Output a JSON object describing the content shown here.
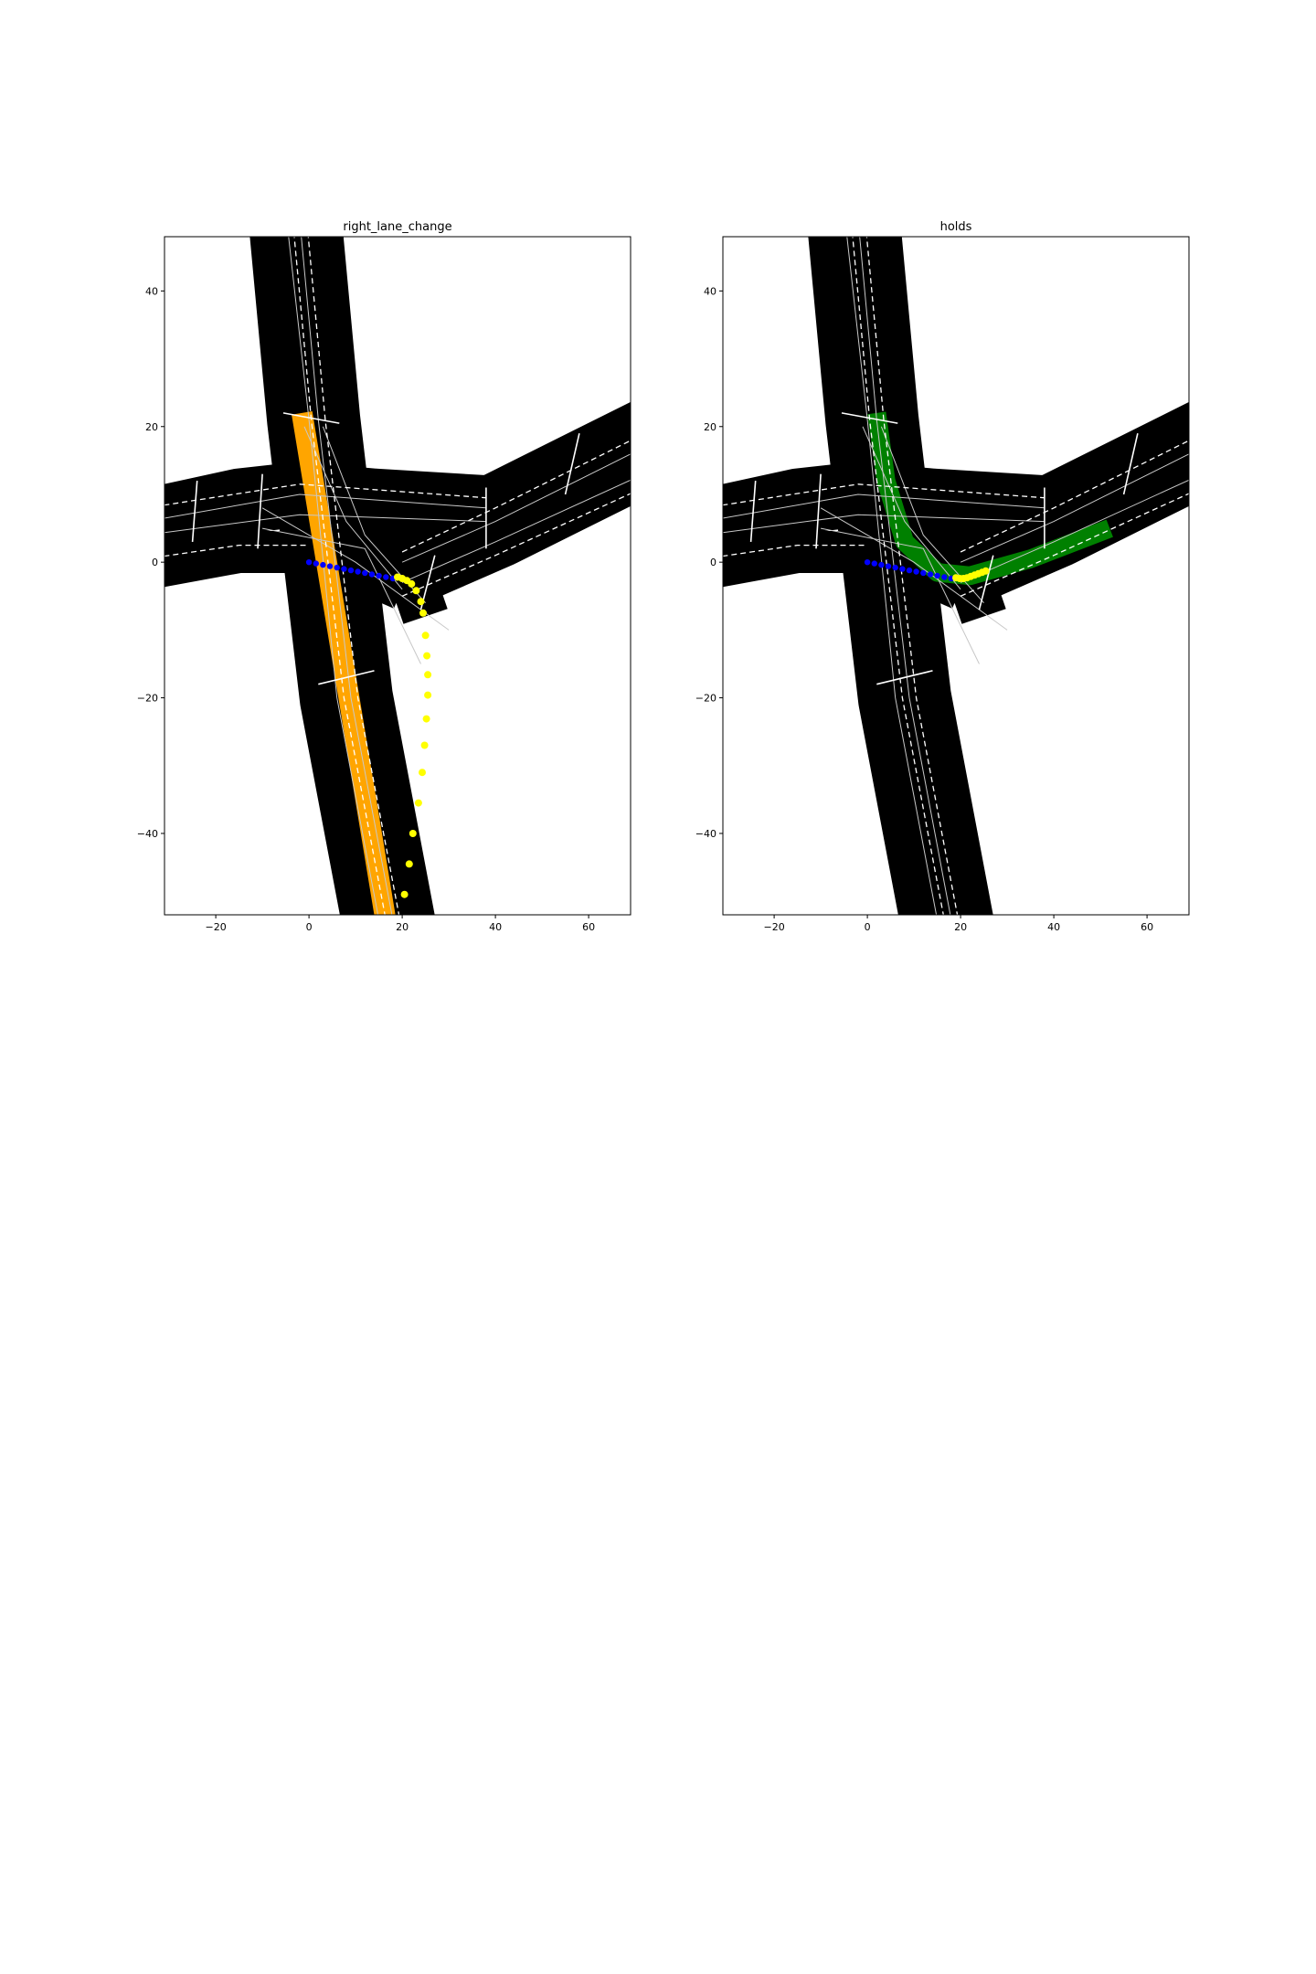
{
  "figure": {
    "background": "#ffffff"
  },
  "map_style": {
    "road_color": "#000000",
    "lane_line_color": "#ffffff",
    "centerline_color": "#c8c8c8",
    "history_color": "#0000ff",
    "prediction_color": "#ffff00"
  },
  "chart_data": [
    {
      "type": "scatter",
      "title": "right_lane_change",
      "xlim": [
        -31,
        69
      ],
      "ylim": [
        -52,
        48
      ],
      "xticks": [
        -20,
        0,
        20,
        40,
        60
      ],
      "yticks": [
        40,
        20,
        0,
        -20,
        -40
      ],
      "grid": false,
      "highlight_color": "#ffa500",
      "highlight_lane": [
        [
          -1.5,
          22
        ],
        [
          16.5,
          -53
        ]
      ],
      "highlight_width": 4.5,
      "series": [
        {
          "role": "history",
          "color": "#0000ff",
          "points": [
            [
              0,
              0
            ],
            [
              1.5,
              -0.2
            ],
            [
              3,
              -0.4
            ],
            [
              4.5,
              -0.6
            ],
            [
              6,
              -0.8
            ],
            [
              7.5,
              -1.0
            ],
            [
              9,
              -1.2
            ],
            [
              10.5,
              -1.4
            ],
            [
              12,
              -1.6
            ],
            [
              13.5,
              -1.8
            ],
            [
              15,
              -2.0
            ],
            [
              16.5,
              -2.2
            ],
            [
              18,
              -2.4
            ]
          ]
        },
        {
          "role": "prediction",
          "color": "#ffff00",
          "points": [
            [
              19,
              -2.2
            ],
            [
              20,
              -2.4
            ],
            [
              21,
              -2.7
            ],
            [
              22,
              -3.2
            ],
            [
              23,
              -4.2
            ],
            [
              24,
              -5.8
            ],
            [
              24.5,
              -7.5
            ],
            [
              25,
              -10.8
            ],
            [
              25.3,
              -13.8
            ],
            [
              25.5,
              -16.6
            ],
            [
              25.5,
              -19.6
            ],
            [
              25.2,
              -23.1
            ],
            [
              24.8,
              -27
            ],
            [
              24.3,
              -31
            ],
            [
              23.5,
              -35.5
            ],
            [
              22.3,
              -40
            ],
            [
              21.5,
              -44.5
            ],
            [
              20.5,
              -49
            ]
          ]
        }
      ]
    },
    {
      "type": "scatter",
      "title": "holds",
      "xlim": [
        -31,
        69
      ],
      "ylim": [
        -52,
        48
      ],
      "xticks": [
        -20,
        0,
        20,
        40,
        60
      ],
      "yticks": [
        40,
        20,
        0,
        -20,
        -40
      ],
      "grid": false,
      "highlight_color": "#008000",
      "highlight_lane": [
        [
          2,
          22
        ],
        [
          4,
          12
        ],
        [
          8,
          3
        ],
        [
          15,
          -1.5
        ],
        [
          22,
          -2
        ],
        [
          35,
          0.5
        ],
        [
          52,
          5
        ]
      ],
      "highlight_width": 4,
      "series": [
        {
          "role": "history",
          "color": "#0000ff",
          "points": [
            [
              0,
              0
            ],
            [
              1.5,
              -0.2
            ],
            [
              3,
              -0.4
            ],
            [
              4.5,
              -0.6
            ],
            [
              6,
              -0.8
            ],
            [
              7.5,
              -1.0
            ],
            [
              9,
              -1.2
            ],
            [
              10.5,
              -1.4
            ],
            [
              12,
              -1.6
            ],
            [
              13.5,
              -1.8
            ],
            [
              15,
              -2.0
            ],
            [
              16.5,
              -2.2
            ],
            [
              18,
              -2.4
            ]
          ]
        },
        {
          "role": "prediction",
          "color": "#ffff00",
          "points": [
            [
              19,
              -2.3
            ],
            [
              19.8,
              -2.4
            ],
            [
              20.6,
              -2.4
            ],
            [
              21.4,
              -2.3
            ],
            [
              22.2,
              -2.1
            ],
            [
              23,
              -1.9
            ],
            [
              23.8,
              -1.7
            ],
            [
              24.6,
              -1.5
            ],
            [
              25.4,
              -1.3
            ]
          ]
        }
      ]
    }
  ]
}
